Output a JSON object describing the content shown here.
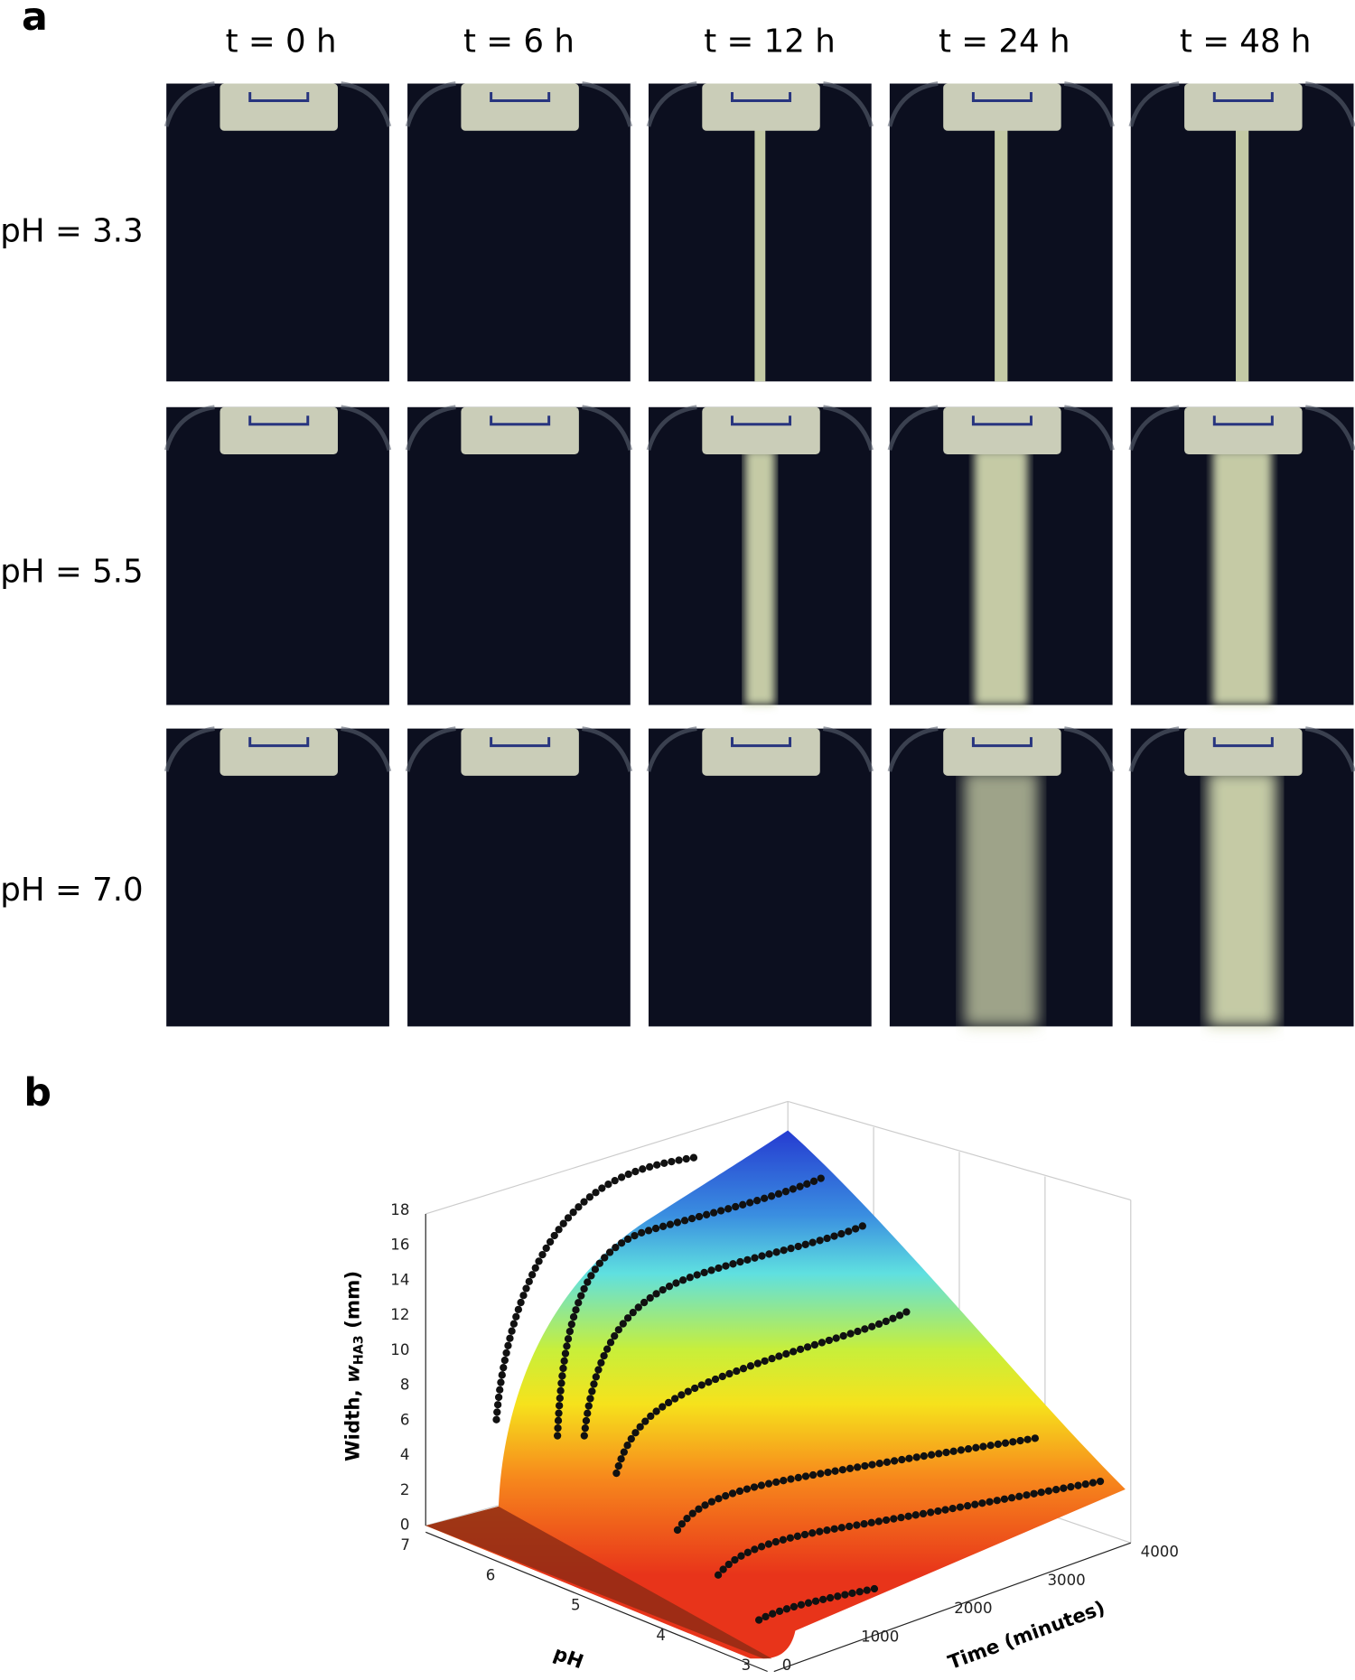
{
  "panel_a": {
    "label": "a",
    "columns": [
      "t = 0 h",
      "t = 6 h",
      "t = 12 h",
      "t = 24 h",
      "t = 48 h"
    ],
    "rows": [
      "pH = 3.3",
      "pH = 5.5",
      "pH = 7.0"
    ]
  },
  "panel_b": {
    "label": "b",
    "z_axis": {
      "text": "Width, ",
      "var": "w",
      "sub": "HA3",
      "unit": " (mm)"
    },
    "z_ticks": [
      0,
      2,
      4,
      6,
      8,
      10,
      12,
      14,
      16,
      18
    ],
    "ph_axis": "pH",
    "ph_ticks": [
      7,
      6,
      5,
      4,
      3
    ],
    "time_axis": "Time (minutes)",
    "time_ticks": [
      0,
      1000,
      2000,
      3000,
      4000
    ]
  }
}
